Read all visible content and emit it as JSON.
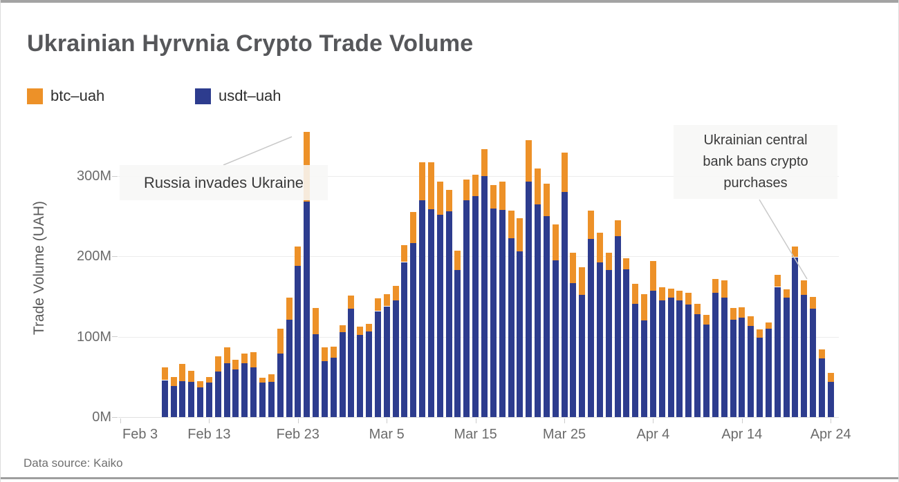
{
  "chart": {
    "title": "Ukrainian Hyrvnia Crypto Trade Volume",
    "y_axis_title": "Trade Volume (UAH)",
    "data_source": "Data source: Kaiko"
  },
  "legend": {
    "items": [
      {
        "label": "btc–uah",
        "color": "#ED9128"
      },
      {
        "label": "usdt–uah",
        "color": "#2D3C8E"
      }
    ]
  },
  "annotations": [
    {
      "id": "russia",
      "text": "Russia invades Ukraine",
      "points_to": "Feb 24"
    },
    {
      "id": "bank",
      "text": "Ukrainian central bank bans crypto purchases",
      "points_to": "Apr 21"
    }
  ],
  "chart_data": {
    "type": "bar",
    "stacked": true,
    "title": "Ukrainian Hyrvnia Crypto Trade Volume",
    "xlabel": "",
    "ylabel": "Trade Volume (UAH)",
    "unit": "millions UAH",
    "ylim": [
      0,
      373
    ],
    "grid": true,
    "legend_position": "top-left",
    "y_ticks": [
      {
        "label": "0M",
        "value": 0
      },
      {
        "label": "100M",
        "value": 100
      },
      {
        "label": "200M",
        "value": 200
      },
      {
        "label": "300M",
        "value": 300
      }
    ],
    "x_ticks": [
      {
        "label": "Feb 3",
        "day_offset": 0
      },
      {
        "label": "Feb 13",
        "day_offset": 10
      },
      {
        "label": "Feb 23",
        "day_offset": 20
      },
      {
        "label": "Mar 5",
        "day_offset": 30
      },
      {
        "label": "Mar 15",
        "day_offset": 40
      },
      {
        "label": "Mar 25",
        "day_offset": 50
      },
      {
        "label": "Apr 4",
        "day_offset": 60
      },
      {
        "label": "Apr 14",
        "day_offset": 70
      },
      {
        "label": "Apr 24",
        "day_offset": 80
      }
    ],
    "axis_start_label": "Feb 3",
    "first_bar_day_offset": 5,
    "x": [
      "Feb 8",
      "Feb 9",
      "Feb 10",
      "Feb 11",
      "Feb 12",
      "Feb 13",
      "Feb 14",
      "Feb 15",
      "Feb 16",
      "Feb 17",
      "Feb 18",
      "Feb 19",
      "Feb 20",
      "Feb 21",
      "Feb 22",
      "Feb 23",
      "Feb 24",
      "Feb 25",
      "Feb 26",
      "Feb 27",
      "Feb 28",
      "Mar 1",
      "Mar 2",
      "Mar 3",
      "Mar 4",
      "Mar 5",
      "Mar 6",
      "Mar 7",
      "Mar 8",
      "Mar 9",
      "Mar 10",
      "Mar 11",
      "Mar 12",
      "Mar 13",
      "Mar 14",
      "Mar 15",
      "Mar 16",
      "Mar 17",
      "Mar 18",
      "Mar 19",
      "Mar 20",
      "Mar 21",
      "Mar 22",
      "Mar 23",
      "Mar 24",
      "Mar 25",
      "Mar 26",
      "Mar 27",
      "Mar 28",
      "Mar 29",
      "Mar 30",
      "Mar 31",
      "Apr 1",
      "Apr 2",
      "Apr 3",
      "Apr 4",
      "Apr 5",
      "Apr 6",
      "Apr 7",
      "Apr 8",
      "Apr 9",
      "Apr 10",
      "Apr 11",
      "Apr 12",
      "Apr 13",
      "Apr 14",
      "Apr 15",
      "Apr 16",
      "Apr 17",
      "Apr 18",
      "Apr 19",
      "Apr 20",
      "Apr 21",
      "Apr 22",
      "Apr 23",
      "Apr 24"
    ],
    "series": [
      {
        "name": "usdt-uah",
        "color": "#2D3C8E",
        "values": [
          46,
          39,
          45,
          44,
          37,
          43,
          57,
          67,
          59,
          67,
          62,
          43,
          44,
          79,
          121,
          188,
          268,
          103,
          70,
          74,
          106,
          135,
          102,
          107,
          132,
          138,
          145,
          193,
          217,
          270,
          259,
          252,
          256,
          183,
          270,
          275,
          300,
          260,
          258,
          223,
          206,
          293,
          265,
          250,
          195,
          280,
          167,
          152,
          222,
          193,
          183,
          225,
          184,
          141,
          120,
          157,
          145,
          149,
          145,
          140,
          128,
          115,
          155,
          149,
          121,
          124,
          114,
          99,
          110,
          162,
          149,
          199,
          152,
          135,
          73,
          44
        ]
      },
      {
        "name": "btc-uah",
        "color": "#ED9128",
        "values": [
          16,
          11,
          21,
          14,
          8,
          7,
          19,
          20,
          12,
          12,
          19,
          6,
          9,
          31,
          28,
          24,
          87,
          33,
          17,
          14,
          8,
          16,
          11,
          9,
          16,
          15,
          18,
          21,
          38,
          47,
          58,
          41,
          27,
          24,
          26,
          27,
          34,
          29,
          35,
          34,
          42,
          52,
          45,
          41,
          45,
          49,
          38,
          35,
          35,
          37,
          22,
          20,
          14,
          25,
          33,
          37,
          17,
          11,
          12,
          15,
          13,
          12,
          17,
          21,
          15,
          13,
          12,
          10,
          8,
          15,
          10,
          13,
          18,
          15,
          11,
          11
        ]
      }
    ]
  }
}
